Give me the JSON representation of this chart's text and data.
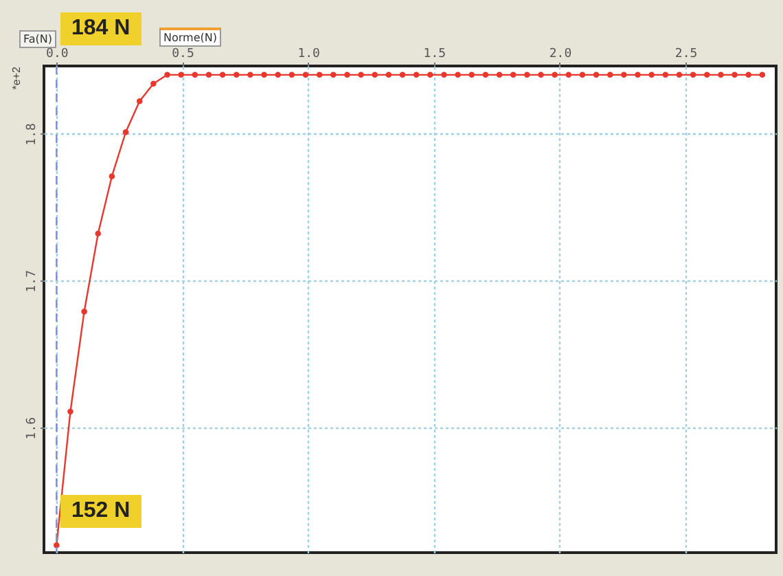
{
  "chart_data": {
    "type": "line",
    "ylabel": "*e+2",
    "annotations": [
      "Fa(N)",
      "Norme(N)",
      "184 N",
      "152 N"
    ],
    "x": [
      0,
      0.055,
      0.11,
      0.165,
      0.22,
      0.275,
      0.33,
      0.385,
      0.44,
      0.495,
      0.55,
      0.605,
      0.66,
      0.715,
      0.77,
      0.825,
      0.88,
      0.935,
      0.99,
      1.045,
      1.1,
      1.155,
      1.21,
      1.265,
      1.32,
      1.375,
      1.43,
      1.485,
      1.54,
      1.595,
      1.65,
      1.705,
      1.76,
      1.815,
      1.87,
      1.925,
      1.98,
      2.035,
      2.09,
      2.145,
      2.2,
      2.255,
      2.31,
      2.365,
      2.42,
      2.475,
      2.53,
      2.585,
      2.64,
      2.695,
      2.75,
      2.805
    ],
    "series": [
      {
        "color": "#e8372c",
        "values": [
          1.52,
          1.611,
          1.679,
          1.732,
          1.771,
          1.801,
          1.822,
          1.834,
          1.84,
          1.84,
          1.84,
          1.84,
          1.84,
          1.84,
          1.84,
          1.84,
          1.84,
          1.84,
          1.84,
          1.84,
          1.84,
          1.84,
          1.84,
          1.84,
          1.84,
          1.84,
          1.84,
          1.84,
          1.84,
          1.84,
          1.84,
          1.84,
          1.84,
          1.84,
          1.84,
          1.84,
          1.84,
          1.84,
          1.84,
          1.84,
          1.84,
          1.84,
          1.84,
          1.84,
          1.84,
          1.84,
          1.84,
          1.84,
          1.84,
          1.84,
          1.84,
          1.84
        ]
      }
    ],
    "xlim": [
      -0.05,
      2.86
    ],
    "ylim": [
      1.515,
      1.846
    ],
    "xticks": [
      {
        "value": 0,
        "label": "0.0"
      },
      0.5,
      {
        "value": 1,
        "label": "1.0"
      },
      1.5,
      {
        "value": 2,
        "label": "2.0"
      },
      2.5
    ],
    "yticks": [
      1.6,
      1.7,
      1.8
    ],
    "ref_lines": [
      {
        "axis": "x",
        "value": 0,
        "color": "#7f8fd0",
        "line_style": "dashed"
      }
    ],
    "grid": true,
    "marker": "circle",
    "line_style": "solid"
  }
}
